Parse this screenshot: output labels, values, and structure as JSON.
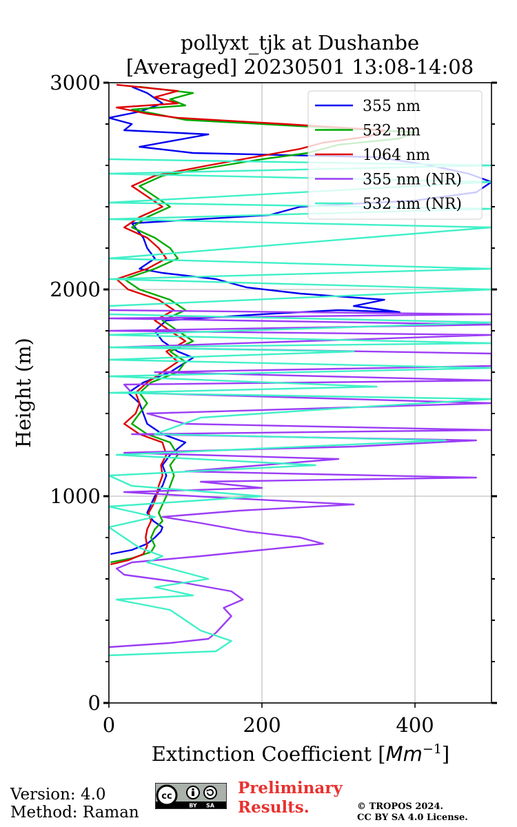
{
  "chart_data": {
    "type": "line",
    "title_line1": "pollyxt_tjk at Dushanbe",
    "title_line2": "[Averaged] 20230501 13:08-14:08",
    "xlabel": "Extinction Coefficient [",
    "xlabel_unit_base": "Mm",
    "xlabel_unit_exp": "−1",
    "xlabel_close": "]",
    "ylabel": "Height (m)",
    "xlim": [
      0,
      500
    ],
    "ylim": [
      0,
      3000
    ],
    "x_ticks": [
      0,
      200,
      400
    ],
    "x_tick_labels": [
      "0",
      "200",
      "400"
    ],
    "y_ticks": [
      0,
      1000,
      2000,
      3000
    ],
    "y_tick_labels": [
      "0",
      "1000",
      "2000",
      "3000"
    ],
    "grid": true,
    "legend_position": "top-right",
    "series": [
      {
        "name": "355 nm",
        "color": "#0000ee",
        "points": [
          [
            2,
            720
          ],
          [
            30,
            740
          ],
          [
            50,
            770
          ],
          [
            60,
            800
          ],
          [
            68,
            830
          ],
          [
            70,
            850
          ],
          [
            58,
            880
          ],
          [
            50,
            920
          ],
          [
            55,
            960
          ],
          [
            60,
            1000
          ],
          [
            70,
            1050
          ],
          [
            75,
            1100
          ],
          [
            70,
            1150
          ],
          [
            80,
            1200
          ],
          [
            100,
            1260
          ],
          [
            70,
            1300
          ],
          [
            50,
            1350
          ],
          [
            45,
            1400
          ],
          [
            40,
            1450
          ],
          [
            25,
            1500
          ],
          [
            45,
            1550
          ],
          [
            80,
            1600
          ],
          [
            110,
            1670
          ],
          [
            90,
            1700
          ],
          [
            70,
            1750
          ],
          [
            60,
            1800
          ],
          [
            75,
            1850
          ],
          [
            200,
            1880
          ],
          [
            300,
            1900
          ],
          [
            380,
            1890
          ],
          [
            320,
            1920
          ],
          [
            360,
            1950
          ],
          [
            250,
            1980
          ],
          [
            180,
            2010
          ],
          [
            140,
            2050
          ],
          [
            70,
            2080
          ],
          [
            40,
            2100
          ],
          [
            60,
            2150
          ],
          [
            50,
            2200
          ],
          [
            45,
            2250
          ],
          [
            30,
            2320
          ],
          [
            210,
            2360
          ],
          [
            250,
            2400
          ],
          [
            400,
            2430
          ],
          [
            480,
            2470
          ],
          [
            500,
            2520
          ],
          [
            470,
            2560
          ],
          [
            420,
            2600
          ],
          [
            350,
            2640
          ],
          [
            110,
            2660
          ],
          [
            40,
            2690
          ],
          [
            130,
            2750
          ],
          [
            20,
            2770
          ],
          [
            30,
            2800
          ],
          [
            0,
            2830
          ],
          [
            40,
            2860
          ],
          [
            70,
            2900
          ],
          [
            50,
            2950
          ],
          [
            30,
            2980
          ]
        ]
      },
      {
        "name": "532 nm",
        "color": "#00aa00",
        "points": [
          [
            2,
            680
          ],
          [
            30,
            700
          ],
          [
            55,
            730
          ],
          [
            60,
            760
          ],
          [
            55,
            800
          ],
          [
            60,
            840
          ],
          [
            70,
            880
          ],
          [
            65,
            920
          ],
          [
            70,
            960
          ],
          [
            75,
            1000
          ],
          [
            80,
            1050
          ],
          [
            85,
            1100
          ],
          [
            80,
            1150
          ],
          [
            90,
            1200
          ],
          [
            80,
            1260
          ],
          [
            50,
            1300
          ],
          [
            30,
            1350
          ],
          [
            40,
            1400
          ],
          [
            50,
            1450
          ],
          [
            40,
            1500
          ],
          [
            55,
            1550
          ],
          [
            90,
            1600
          ],
          [
            100,
            1650
          ],
          [
            80,
            1700
          ],
          [
            110,
            1750
          ],
          [
            90,
            1800
          ],
          [
            70,
            1850
          ],
          [
            100,
            1900
          ],
          [
            80,
            1950
          ],
          [
            40,
            2000
          ],
          [
            20,
            2050
          ],
          [
            60,
            2100
          ],
          [
            90,
            2150
          ],
          [
            80,
            2200
          ],
          [
            60,
            2250
          ],
          [
            30,
            2300
          ],
          [
            50,
            2350
          ],
          [
            80,
            2400
          ],
          [
            60,
            2450
          ],
          [
            40,
            2500
          ],
          [
            70,
            2550
          ],
          [
            150,
            2600
          ],
          [
            200,
            2630
          ],
          [
            260,
            2660
          ],
          [
            300,
            2700
          ],
          [
            380,
            2730
          ],
          [
            400,
            2760
          ],
          [
            250,
            2790
          ],
          [
            100,
            2820
          ],
          [
            60,
            2850
          ],
          [
            30,
            2870
          ],
          [
            100,
            2890
          ],
          [
            80,
            2920
          ],
          [
            110,
            2950
          ],
          [
            40,
            2980
          ]
        ]
      },
      {
        "name": "1064 nm",
        "color": "#dd0000",
        "points": [
          [
            2,
            670
          ],
          [
            25,
            690
          ],
          [
            45,
            720
          ],
          [
            50,
            760
          ],
          [
            48,
            800
          ],
          [
            50,
            840
          ],
          [
            55,
            880
          ],
          [
            52,
            920
          ],
          [
            58,
            960
          ],
          [
            62,
            1000
          ],
          [
            65,
            1050
          ],
          [
            70,
            1100
          ],
          [
            68,
            1150
          ],
          [
            75,
            1200
          ],
          [
            70,
            1260
          ],
          [
            40,
            1300
          ],
          [
            20,
            1350
          ],
          [
            35,
            1400
          ],
          [
            40,
            1450
          ],
          [
            35,
            1500
          ],
          [
            50,
            1550
          ],
          [
            70,
            1600
          ],
          [
            90,
            1650
          ],
          [
            75,
            1700
          ],
          [
            100,
            1750
          ],
          [
            80,
            1800
          ],
          [
            60,
            1850
          ],
          [
            85,
            1900
          ],
          [
            65,
            1950
          ],
          [
            25,
            2000
          ],
          [
            10,
            2050
          ],
          [
            50,
            2100
          ],
          [
            75,
            2150
          ],
          [
            65,
            2200
          ],
          [
            50,
            2250
          ],
          [
            20,
            2300
          ],
          [
            40,
            2350
          ],
          [
            70,
            2400
          ],
          [
            50,
            2450
          ],
          [
            30,
            2500
          ],
          [
            60,
            2550
          ],
          [
            130,
            2600
          ],
          [
            190,
            2640
          ],
          [
            250,
            2680
          ],
          [
            280,
            2710
          ],
          [
            340,
            2740
          ],
          [
            360,
            2770
          ],
          [
            230,
            2800
          ],
          [
            90,
            2830
          ],
          [
            50,
            2850
          ],
          [
            10,
            2880
          ],
          [
            90,
            2900
          ],
          [
            60,
            2930
          ],
          [
            90,
            2960
          ],
          [
            10,
            2990
          ]
        ]
      },
      {
        "name": "355 nm (NR)",
        "color": "#9b3df5",
        "points": [
          [
            0,
            270
          ],
          [
            80,
            290
          ],
          [
            130,
            310
          ],
          [
            140,
            340
          ],
          [
            150,
            380
          ],
          [
            160,
            420
          ],
          [
            150,
            460
          ],
          [
            175,
            500
          ],
          [
            160,
            540
          ],
          [
            100,
            580
          ],
          [
            20,
            620
          ],
          [
            10,
            650
          ],
          [
            30,
            680
          ],
          [
            120,
            710
          ],
          [
            200,
            740
          ],
          [
            280,
            770
          ],
          [
            250,
            800
          ],
          [
            180,
            830
          ],
          [
            120,
            870
          ],
          [
            70,
            900
          ],
          [
            170,
            930
          ],
          [
            320,
            960
          ],
          [
            160,
            990
          ],
          [
            20,
            1020
          ],
          [
            200,
            1040
          ],
          [
            120,
            1070
          ],
          [
            480,
            1090
          ],
          [
            100,
            1120
          ],
          [
            200,
            1150
          ],
          [
            300,
            1180
          ],
          [
            20,
            1210
          ],
          [
            320,
            1240
          ],
          [
            480,
            1270
          ],
          [
            30,
            1300
          ],
          [
            500,
            1320
          ],
          [
            100,
            1350
          ],
          [
            50,
            1400
          ],
          [
            500,
            1450
          ],
          [
            30,
            1500
          ],
          [
            20,
            1540
          ],
          [
            500,
            1560
          ],
          [
            60,
            1600
          ],
          [
            500,
            1630
          ],
          [
            500,
            1660
          ],
          [
            500,
            1690
          ],
          [
            10,
            1720
          ],
          [
            500,
            1780
          ],
          [
            0,
            1800
          ],
          [
            500,
            1830
          ],
          [
            0,
            1860
          ],
          [
            500,
            1880
          ],
          [
            0,
            1900
          ]
        ]
      },
      {
        "name": "532 nm (NR)",
        "color": "#40f0c8",
        "points": [
          [
            0,
            230
          ],
          [
            140,
            250
          ],
          [
            160,
            300
          ],
          [
            120,
            350
          ],
          [
            100,
            400
          ],
          [
            80,
            450
          ],
          [
            10,
            500
          ],
          [
            110,
            520
          ],
          [
            60,
            560
          ],
          [
            130,
            600
          ],
          [
            90,
            640
          ],
          [
            50,
            680
          ],
          [
            70,
            710
          ],
          [
            40,
            750
          ],
          [
            20,
            800
          ],
          [
            0,
            850
          ],
          [
            60,
            900
          ],
          [
            0,
            950
          ],
          [
            200,
            1000
          ],
          [
            30,
            1050
          ],
          [
            0,
            1100
          ],
          [
            270,
            1150
          ],
          [
            10,
            1200
          ],
          [
            440,
            1270
          ],
          [
            60,
            1300
          ],
          [
            120,
            1380
          ],
          [
            280,
            1420
          ],
          [
            500,
            1470
          ],
          [
            0,
            1500
          ],
          [
            350,
            1530
          ],
          [
            0,
            1580
          ],
          [
            500,
            1620
          ],
          [
            0,
            1660
          ],
          [
            320,
            1700
          ],
          [
            0,
            1720
          ],
          [
            500,
            1740
          ],
          [
            0,
            1780
          ],
          [
            500,
            1840
          ],
          [
            0,
            1880
          ],
          [
            0,
            1920
          ],
          [
            500,
            2000
          ],
          [
            0,
            2050
          ],
          [
            500,
            2100
          ],
          [
            0,
            2150
          ],
          [
            500,
            2300
          ],
          [
            0,
            2340
          ],
          [
            500,
            2390
          ],
          [
            0,
            2420
          ],
          [
            500,
            2520
          ],
          [
            0,
            2560
          ],
          [
            500,
            2600
          ],
          [
            0,
            2630
          ]
        ]
      }
    ]
  },
  "footer": {
    "version": "Version: 4.0",
    "method": "Method: Raman",
    "preliminary_line1": "Preliminary",
    "preliminary_line2": "Results.",
    "copyright_line1": "© TROPOS 2024.",
    "copyright_line2": "CC BY SA 4.0 License.",
    "cc_badge_label1": "BY",
    "cc_badge_label2": "SA",
    "cc_badge_icons": [
      "cc-icon",
      "attribution-icon",
      "share-alike-icon"
    ]
  }
}
